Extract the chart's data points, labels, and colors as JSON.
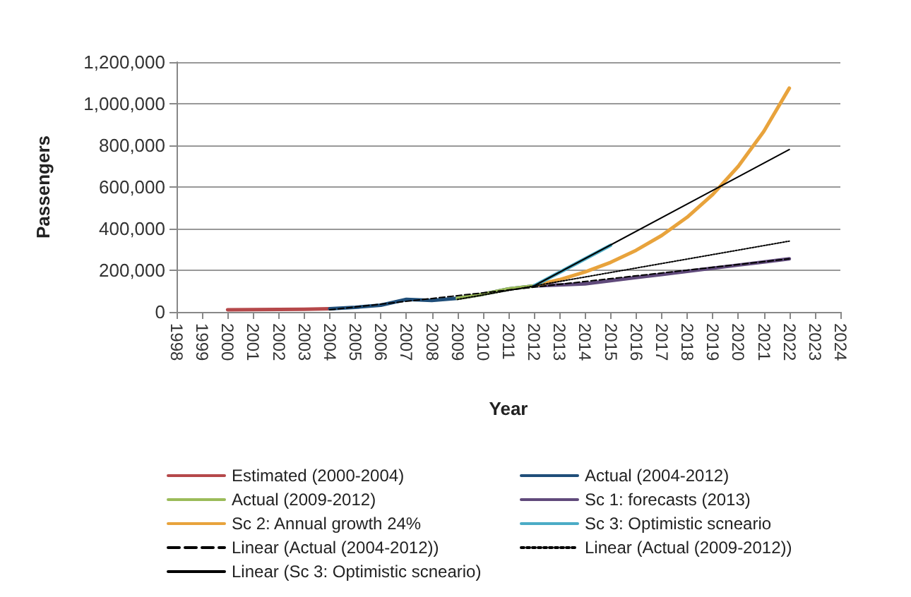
{
  "chart_data": {
    "type": "line",
    "xlabel": "Year",
    "ylabel": "Passengers",
    "xlim": [
      1998,
      2024
    ],
    "xticks": [
      1998,
      1999,
      2000,
      2001,
      2002,
      2003,
      2004,
      2005,
      2006,
      2007,
      2008,
      2009,
      2010,
      2011,
      2012,
      2013,
      2014,
      2015,
      2016,
      2017,
      2018,
      2019,
      2020,
      2021,
      2022,
      2023,
      2024
    ],
    "ylim": [
      0,
      1200000
    ],
    "yticks": [
      0,
      {
        "value": 200000,
        "label": "200,000"
      },
      {
        "value": 400000,
        "label": "400,000"
      },
      {
        "value": 600000,
        "label": "600,000"
      },
      {
        "value": 800000,
        "label": "800,000"
      },
      {
        "value": 1000000,
        "label": "1,000,000"
      },
      {
        "value": 1200000,
        "label": "1,200,000"
      }
    ],
    "grid": "y",
    "legend": "bottom",
    "marker": "none",
    "series": [
      {
        "name": "Estimated (2000-2004)",
        "color": "#b5484a",
        "x": [
          2000,
          2001,
          2002,
          2003,
          2004
        ],
        "values": [
          10000,
          11000,
          12000,
          13000,
          15000
        ]
      },
      {
        "name": "Actual (2004-2012)",
        "color": "#1f4e79",
        "x": [
          2004,
          2005,
          2006,
          2007,
          2008,
          2009,
          2010,
          2011,
          2012
        ],
        "values": [
          15000,
          22000,
          32000,
          60000,
          55000,
          65000,
          85000,
          110000,
          125000
        ]
      },
      {
        "name": "Actual (2009-2012)",
        "color": "#9bbb59",
        "x": [
          2009,
          2010,
          2011,
          2012
        ],
        "values": [
          65000,
          85000,
          110000,
          125000
        ]
      },
      {
        "name": "Sc 1: forecasts (2013)",
        "color": "#604a7b",
        "x": [
          2012,
          2013,
          2014,
          2015,
          2016,
          2017,
          2018,
          2019,
          2020,
          2021,
          2022
        ],
        "values": [
          125000,
          130000,
          135000,
          150000,
          165000,
          180000,
          195000,
          210000,
          225000,
          240000,
          255000
        ]
      },
      {
        "name": "Sc 2: Annual growth 24%",
        "color": "#e8a33c",
        "x": [
          2012,
          2013,
          2014,
          2015,
          2016,
          2017,
          2018,
          2019,
          2020,
          2021,
          2022
        ],
        "values": [
          125000,
          155000,
          192000,
          238000,
          296000,
          367000,
          455000,
          564000,
          699000,
          867000,
          1075000
        ]
      },
      {
        "name": "Sc 3: Optimistic scneario",
        "color": "#4bacc6",
        "x": [
          2012,
          2013,
          2014,
          2015
        ],
        "values": [
          125000,
          190000,
          255000,
          320000
        ]
      },
      {
        "name": "Linear (Actual (2004-2012))",
        "color": "#000000",
        "line_style": "dashed",
        "x": [
          2004,
          2022
        ],
        "values": [
          10000,
          255000
        ]
      },
      {
        "name": "Linear (Actual (2009-2012))",
        "color": "#000000",
        "line_style": "dotted",
        "x": [
          2009,
          2022
        ],
        "values": [
          60000,
          340000
        ]
      },
      {
        "name": "Linear (Sc 3: Optimistic scneario)",
        "color": "#000000",
        "line_style": "solid",
        "x": [
          2012,
          2022
        ],
        "values": [
          125000,
          780000
        ]
      }
    ]
  }
}
